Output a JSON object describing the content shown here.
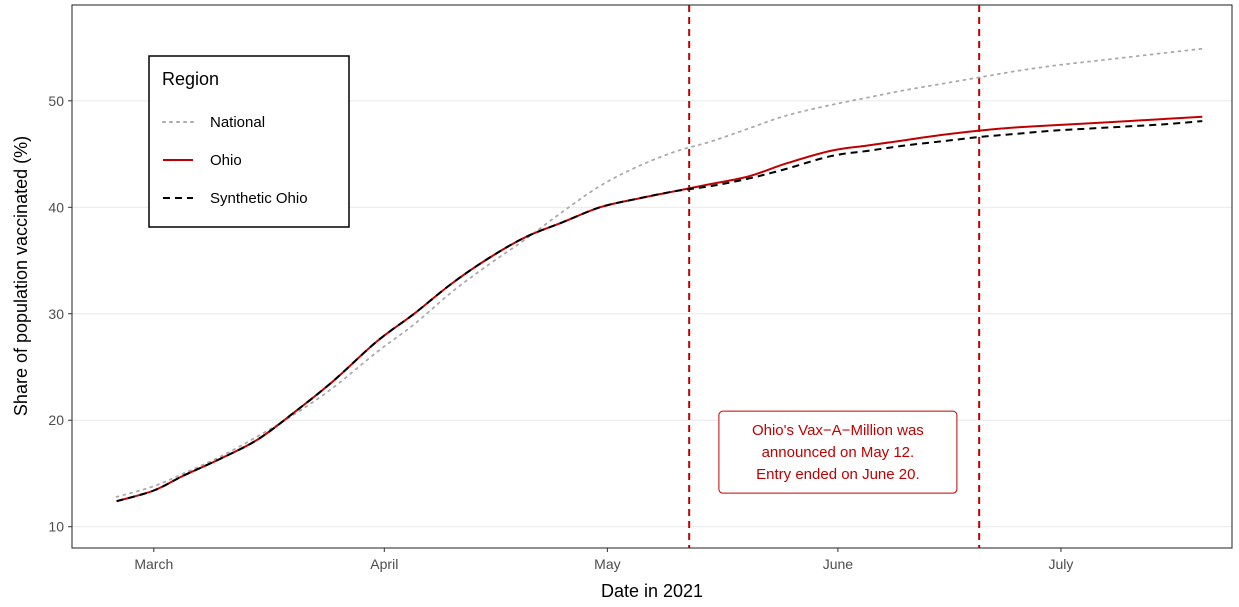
{
  "chart_data": {
    "type": "line",
    "xlabel": "Date in 2021",
    "ylabel": "Share of population vaccinated (%)",
    "xlim": [
      "2021-02-18",
      "2021-07-24"
    ],
    "ylim": [
      8,
      59
    ],
    "x_ticks": [
      {
        "date": "2021-03-01",
        "label": "March"
      },
      {
        "date": "2021-04-01",
        "label": "April"
      },
      {
        "date": "2021-05-01",
        "label": "May"
      },
      {
        "date": "2021-06-01",
        "label": "June"
      },
      {
        "date": "2021-07-01",
        "label": "July"
      }
    ],
    "y_ticks": [
      10,
      20,
      30,
      40,
      50
    ],
    "grid": "horizontal",
    "legend": {
      "title": "Region",
      "position": "top-left"
    },
    "series": [
      {
        "name": "National",
        "color": "#aaaaaa",
        "style": "dotted",
        "points": [
          [
            "2021-02-24",
            12.8
          ],
          [
            "2021-03-01",
            13.8
          ],
          [
            "2021-03-05",
            15.0
          ],
          [
            "2021-03-10",
            16.6
          ],
          [
            "2021-03-15",
            18.5
          ],
          [
            "2021-03-20",
            20.6
          ],
          [
            "2021-03-25",
            23.0
          ],
          [
            "2021-03-31",
            26.4
          ],
          [
            "2021-04-05",
            29.0
          ],
          [
            "2021-04-10",
            32.0
          ],
          [
            "2021-04-15",
            34.6
          ],
          [
            "2021-04-20",
            37.0
          ],
          [
            "2021-04-25",
            39.6
          ],
          [
            "2021-04-30",
            42.0
          ],
          [
            "2021-05-05",
            43.8
          ],
          [
            "2021-05-10",
            45.2
          ],
          [
            "2021-05-15",
            46.2
          ],
          [
            "2021-05-20",
            47.4
          ],
          [
            "2021-05-25",
            48.6
          ],
          [
            "2021-05-31",
            49.6
          ],
          [
            "2021-06-05",
            50.3
          ],
          [
            "2021-06-10",
            51.0
          ],
          [
            "2021-06-15",
            51.6
          ],
          [
            "2021-06-20",
            52.2
          ],
          [
            "2021-06-25",
            52.8
          ],
          [
            "2021-06-30",
            53.3
          ],
          [
            "2021-07-05",
            53.7
          ],
          [
            "2021-07-10",
            54.1
          ],
          [
            "2021-07-15",
            54.5
          ],
          [
            "2021-07-20",
            54.9
          ]
        ]
      },
      {
        "name": "Ohio",
        "color": "#c00000",
        "style": "solid",
        "points": [
          [
            "2021-02-24",
            12.4
          ],
          [
            "2021-03-01",
            13.4
          ],
          [
            "2021-03-05",
            14.8
          ],
          [
            "2021-03-10",
            16.4
          ],
          [
            "2021-03-15",
            18.2
          ],
          [
            "2021-03-20",
            20.8
          ],
          [
            "2021-03-25",
            23.6
          ],
          [
            "2021-03-31",
            27.4
          ],
          [
            "2021-04-05",
            30.0
          ],
          [
            "2021-04-10",
            32.8
          ],
          [
            "2021-04-15",
            35.2
          ],
          [
            "2021-04-20",
            37.2
          ],
          [
            "2021-04-25",
            38.6
          ],
          [
            "2021-04-30",
            40.0
          ],
          [
            "2021-05-05",
            40.8
          ],
          [
            "2021-05-10",
            41.5
          ],
          [
            "2021-05-15",
            42.2
          ],
          [
            "2021-05-20",
            42.9
          ],
          [
            "2021-05-25",
            44.1
          ],
          [
            "2021-05-31",
            45.3
          ],
          [
            "2021-06-05",
            45.8
          ],
          [
            "2021-06-10",
            46.3
          ],
          [
            "2021-06-15",
            46.8
          ],
          [
            "2021-06-20",
            47.2
          ],
          [
            "2021-06-25",
            47.5
          ],
          [
            "2021-06-30",
            47.7
          ],
          [
            "2021-07-05",
            47.9
          ],
          [
            "2021-07-10",
            48.1
          ],
          [
            "2021-07-15",
            48.3
          ],
          [
            "2021-07-20",
            48.5
          ]
        ]
      },
      {
        "name": "Synthetic Ohio",
        "color": "#000000",
        "style": "dashed",
        "points": [
          [
            "2021-02-24",
            12.4
          ],
          [
            "2021-03-01",
            13.4
          ],
          [
            "2021-03-05",
            14.8
          ],
          [
            "2021-03-10",
            16.4
          ],
          [
            "2021-03-15",
            18.2
          ],
          [
            "2021-03-20",
            20.8
          ],
          [
            "2021-03-25",
            23.6
          ],
          [
            "2021-03-31",
            27.4
          ],
          [
            "2021-04-05",
            30.0
          ],
          [
            "2021-04-10",
            32.8
          ],
          [
            "2021-04-15",
            35.2
          ],
          [
            "2021-04-20",
            37.2
          ],
          [
            "2021-04-25",
            38.6
          ],
          [
            "2021-04-30",
            40.0
          ],
          [
            "2021-05-05",
            40.8
          ],
          [
            "2021-05-10",
            41.5
          ],
          [
            "2021-05-15",
            42.0
          ],
          [
            "2021-05-20",
            42.7
          ],
          [
            "2021-05-25",
            43.6
          ],
          [
            "2021-05-31",
            44.8
          ],
          [
            "2021-06-05",
            45.3
          ],
          [
            "2021-06-10",
            45.8
          ],
          [
            "2021-06-15",
            46.2
          ],
          [
            "2021-06-20",
            46.6
          ],
          [
            "2021-06-25",
            46.9
          ],
          [
            "2021-06-30",
            47.2
          ],
          [
            "2021-07-05",
            47.4
          ],
          [
            "2021-07-10",
            47.6
          ],
          [
            "2021-07-15",
            47.8
          ],
          [
            "2021-07-20",
            48.1
          ]
        ]
      }
    ],
    "vlines": [
      {
        "date": "2021-05-12",
        "color": "#c00000",
        "style": "dashed"
      },
      {
        "date": "2021-06-20",
        "color": "#c00000",
        "style": "dashed"
      }
    ],
    "annotation": {
      "lines": [
        "Ohio's Vax−A−Million was",
        "announced on May 12.",
        "Entry ended on June 20."
      ],
      "date": "2021-06-01",
      "y": 17.0,
      "color": "#c00000"
    }
  }
}
